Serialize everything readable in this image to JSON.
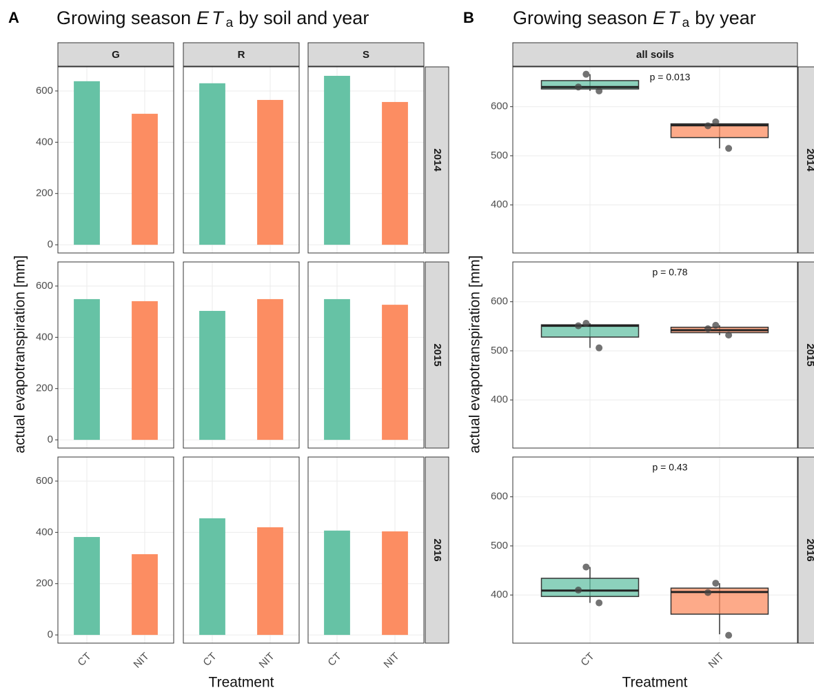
{
  "chart_data": [
    {
      "type": "bar",
      "panel_label": "A",
      "title": [
        "Growing season",
        "ET",
        "a",
        "by soil and year"
      ],
      "columns": [
        "G",
        "R",
        "S"
      ],
      "rows": [
        "2014",
        "2015",
        "2016"
      ],
      "categories": [
        "CT",
        "NIT"
      ],
      "colors": [
        "#66c2a5",
        "#fc8d62"
      ],
      "values": [
        [
          [
            638,
            511
          ],
          [
            630,
            565
          ],
          [
            659,
            557
          ]
        ],
        [
          [
            549,
            541
          ],
          [
            503,
            549
          ],
          [
            549,
            527
          ]
        ],
        [
          [
            382,
            315
          ],
          [
            455,
            420
          ],
          [
            407,
            404
          ]
        ]
      ],
      "ylim": [
        -32,
        694
      ],
      "yticks": [
        0,
        200,
        400,
        600
      ],
      "grid": true,
      "ylabel": "actual evapotranspiration [mm]",
      "xlabel": "Treatment"
    },
    {
      "type": "box",
      "panel_label": "B",
      "title": [
        "Growing season",
        "ET",
        "a",
        "by year"
      ],
      "strip": "all soils",
      "rows": [
        "2014",
        "2015",
        "2016"
      ],
      "categories": [
        "CT",
        "NIT"
      ],
      "colors": [
        "#66c2a5",
        "#fc8d62"
      ],
      "boxes": [
        [
          {
            "low": 632,
            "q1": 636,
            "median": 640,
            "q3": 653,
            "high": 666,
            "points": [
              666,
              640,
              632
            ]
          },
          {
            "low": 515,
            "q1": 537,
            "median": 562,
            "q3": 565,
            "high": 565,
            "points": [
              569,
              561,
              515
            ]
          }
        ],
        [
          {
            "low": 506,
            "q1": 528,
            "median": 551,
            "q3": 553,
            "high": 556,
            "points": [
              556,
              551,
              506
            ]
          },
          {
            "low": 532,
            "q1": 537,
            "median": 542,
            "q3": 548,
            "high": 552,
            "points": [
              552,
              545,
              532
            ]
          }
        ],
        [
          {
            "low": 384,
            "q1": 397,
            "median": 409,
            "q3": 434,
            "high": 457,
            "points": [
              457,
              410,
              384
            ]
          },
          {
            "low": 320,
            "q1": 361,
            "median": 406,
            "q3": 414,
            "high": 424,
            "points": [
              424,
              405,
              318
            ]
          }
        ]
      ],
      "annotations": [
        "p = 0.013",
        "p = 0.78",
        "p = 0.43"
      ],
      "ylim": [
        302,
        681
      ],
      "yticks": [
        400,
        500,
        600
      ],
      "grid": true,
      "ylabel": "actual evapotranspiration [mm]",
      "xlabel": "Treatment"
    }
  ]
}
